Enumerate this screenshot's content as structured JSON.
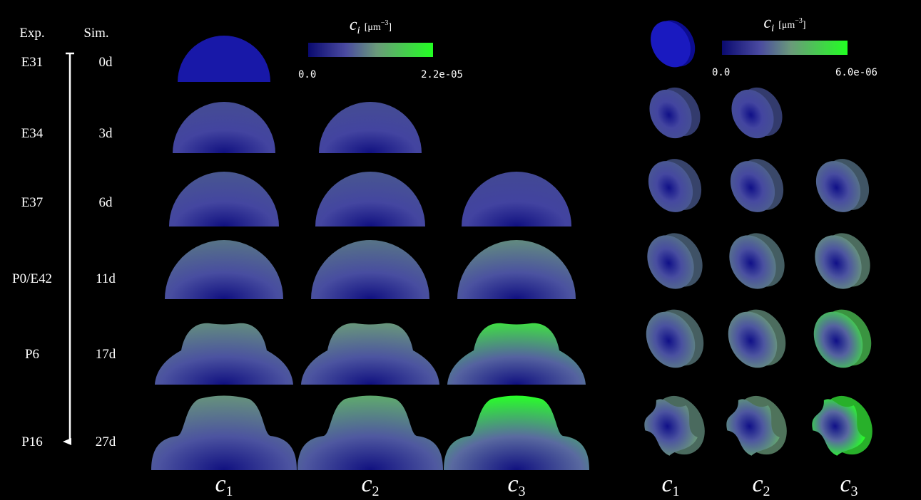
{
  "header": {
    "exp": "Exp.",
    "sim": "Sim."
  },
  "rows": [
    {
      "exp": "E31",
      "sim": "0d"
    },
    {
      "exp": "E34",
      "sim": "3d"
    },
    {
      "exp": "E37",
      "sim": "6d"
    },
    {
      "exp": "P0/E42",
      "sim": "11d"
    },
    {
      "exp": "P6",
      "sim": "17d"
    },
    {
      "exp": "P16",
      "sim": "27d"
    }
  ],
  "colorbars": [
    {
      "symbol": "c",
      "subscript": "i",
      "unit": "[μm",
      "unit_exponent": "−3",
      "unit_close": "]",
      "min_label": "0.0",
      "max_label": "2.2e-05"
    },
    {
      "symbol": "c",
      "subscript": "i",
      "unit": "[μm",
      "unit_exponent": "−3",
      "unit_close": "]",
      "min_label": "0.0",
      "max_label": "6.0e-06"
    }
  ],
  "column_labels_2d": [
    {
      "symbol": "c",
      "subscript": "1"
    },
    {
      "symbol": "c",
      "subscript": "2"
    },
    {
      "symbol": "c",
      "subscript": "3"
    }
  ],
  "column_labels_3d": [
    {
      "symbol": "c",
      "subscript": "1"
    },
    {
      "symbol": "c",
      "subscript": "2"
    },
    {
      "symbol": "c",
      "subscript": "3"
    }
  ]
}
